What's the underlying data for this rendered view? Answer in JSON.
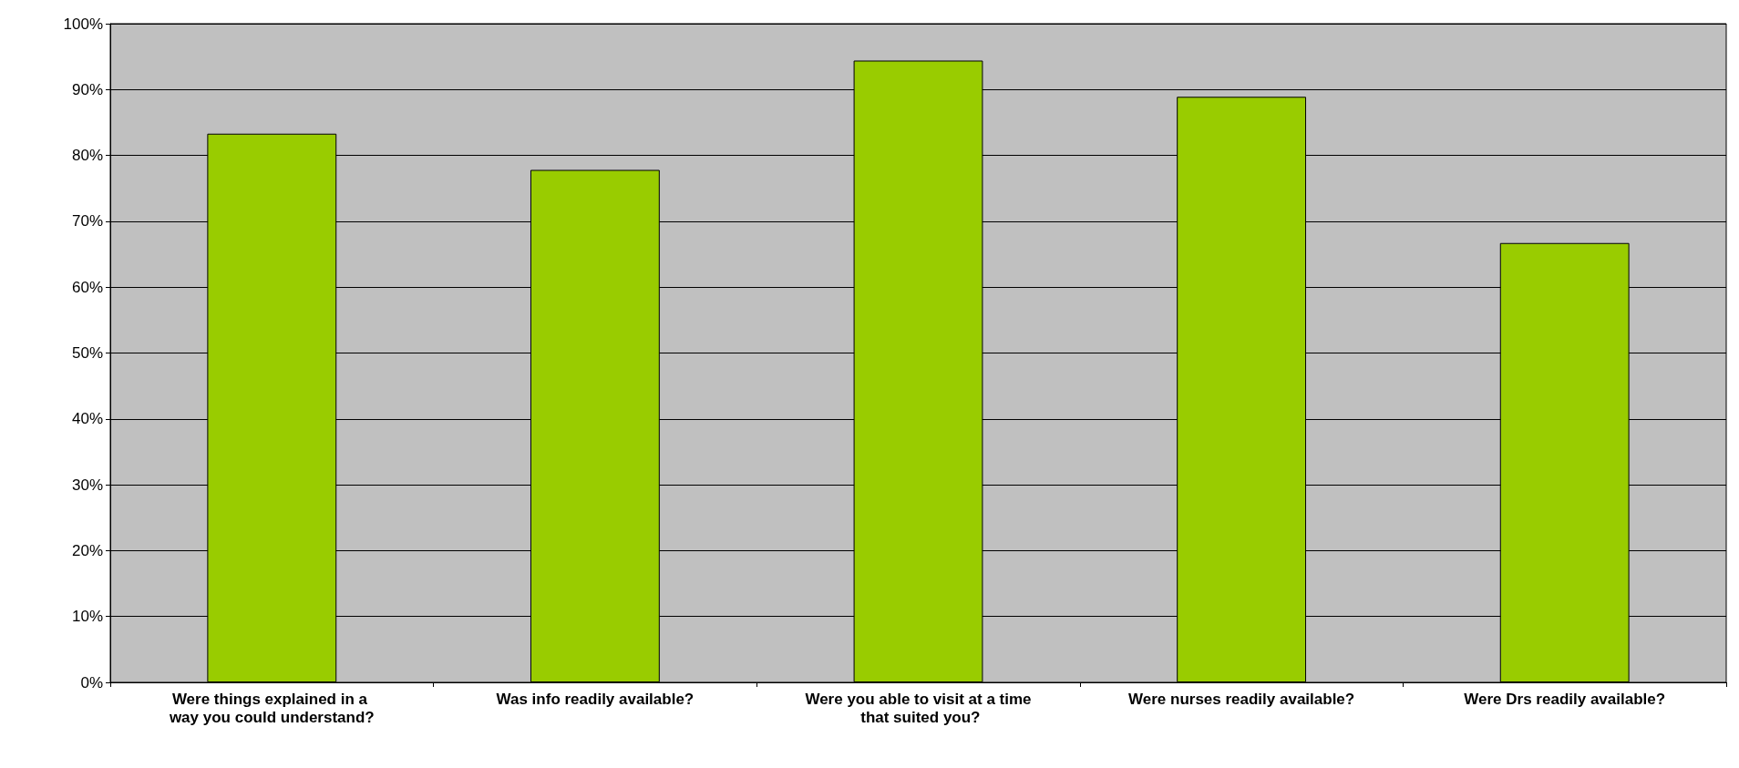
{
  "chart_data": {
    "type": "bar",
    "categories": [
      "Were things explained in a way you could understand?",
      "Was info readily available?",
      "Were you able to visit at a time that suited you?",
      "Were nurses readily available?",
      "Were Drs readily available?"
    ],
    "values": [
      83.3,
      77.8,
      94.4,
      88.9,
      66.7
    ],
    "color": "#99cc00",
    "ylim": [
      0,
      100
    ],
    "yticks": [
      {
        "value": 0,
        "label": "0%"
      },
      {
        "value": 10,
        "label": "10%"
      },
      {
        "value": 20,
        "label": "20%"
      },
      {
        "value": 30,
        "label": "30%"
      },
      {
        "value": 40,
        "label": "40%"
      },
      {
        "value": 50,
        "label": "50%"
      },
      {
        "value": 60,
        "label": "60%"
      },
      {
        "value": 70,
        "label": "70%"
      },
      {
        "value": 80,
        "label": "80%"
      },
      {
        "value": 90,
        "label": "90%"
      },
      {
        "value": 100,
        "label": "100%"
      }
    ],
    "grid": "y"
  }
}
